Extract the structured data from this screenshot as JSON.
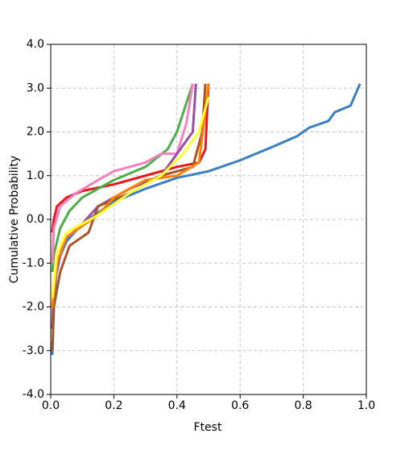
{
  "chart_data": {
    "type": "line",
    "xlabel": "Ftest",
    "ylabel": "Cumulative Probability",
    "xlim": [
      0,
      1
    ],
    "ylim": [
      -4,
      4
    ],
    "xticks": [
      {
        "value": 0,
        "label": "0.0"
      },
      {
        "value": 0.2,
        "label": "0.2"
      },
      {
        "value": 0.4,
        "label": "0.4"
      },
      {
        "value": 0.6,
        "label": "0.6"
      },
      {
        "value": 0.8,
        "label": "0.8"
      },
      {
        "value": 1,
        "label": "1.0"
      }
    ],
    "yticks": [
      {
        "value": -4,
        "label": "-4.0"
      },
      {
        "value": -3,
        "label": "-3.0"
      },
      {
        "value": -2,
        "label": "-2.0"
      },
      {
        "value": -1,
        "label": "-1.0"
      },
      {
        "value": 0,
        "label": "0.0"
      },
      {
        "value": 1,
        "label": "1.0"
      },
      {
        "value": 2,
        "label": "2.0"
      },
      {
        "value": 3,
        "label": "3.0"
      },
      {
        "value": 4,
        "label": "4.0"
      }
    ],
    "grid": true,
    "series": [
      {
        "color": "#3a7fc1",
        "x": [
          0.005,
          0.01,
          0.02,
          0.05,
          0.1,
          0.2,
          0.3,
          0.4,
          0.5,
          0.6,
          0.7,
          0.78,
          0.82,
          0.88,
          0.9,
          0.95,
          0.98
        ],
        "values": [
          -3.1,
          -2,
          -1,
          -0.5,
          -0.1,
          0.4,
          0.7,
          0.95,
          1.1,
          1.35,
          1.65,
          1.9,
          2.1,
          2.25,
          2.45,
          2.6,
          3.1
        ]
      },
      {
        "color": "#e41a1c",
        "x": [
          0.005,
          0.01,
          0.02,
          0.05,
          0.1,
          0.2,
          0.3,
          0.4,
          0.47,
          0.49,
          0.5
        ],
        "values": [
          -0.3,
          0,
          0.3,
          0.5,
          0.65,
          0.8,
          1.0,
          1.2,
          1.3,
          1.6,
          3.1
        ]
      },
      {
        "color": "#4daf4a",
        "x": [
          0.005,
          0.01,
          0.03,
          0.06,
          0.1,
          0.2,
          0.3,
          0.37,
          0.4,
          0.45
        ],
        "values": [
          -1.2,
          -0.8,
          -0.2,
          0.2,
          0.5,
          0.9,
          1.2,
          1.6,
          2.0,
          3.1
        ]
      },
      {
        "color": "#f781bf",
        "x": [
          0.005,
          0.01,
          0.03,
          0.08,
          0.15,
          0.2,
          0.3,
          0.35,
          0.4,
          0.43,
          0.45
        ],
        "values": [
          -1.0,
          -0.2,
          0.3,
          0.6,
          0.9,
          1.1,
          1.3,
          1.5,
          1.5,
          2.2,
          3.1
        ]
      },
      {
        "color": "#984ea3",
        "x": [
          0.005,
          0.01,
          0.04,
          0.1,
          0.15,
          0.25,
          0.35,
          0.4,
          0.45,
          0.46
        ],
        "values": [
          -2.5,
          -1.5,
          -0.5,
          -0.1,
          0.3,
          0.7,
          1.0,
          1.5,
          2.0,
          3.1
        ]
      },
      {
        "color": "#a65628",
        "x": [
          0.005,
          0.01,
          0.03,
          0.06,
          0.12,
          0.15,
          0.25,
          0.35,
          0.45,
          0.48,
          0.49
        ],
        "values": [
          -3.0,
          -2.0,
          -1.2,
          -0.6,
          -0.3,
          0.3,
          0.6,
          1.0,
          1.2,
          2.0,
          3.1
        ]
      },
      {
        "color": "#ff7f00",
        "x": [
          0.005,
          0.02,
          0.05,
          0.15,
          0.2,
          0.3,
          0.4,
          0.47,
          0.5
        ],
        "values": [
          -2.0,
          -1.0,
          -0.4,
          0.1,
          0.5,
          0.9,
          1.0,
          1.3,
          3.1
        ]
      },
      {
        "color": "#ffff33",
        "x": [
          0.005,
          0.02,
          0.05,
          0.15,
          0.25,
          0.35,
          0.42,
          0.47,
          0.5
        ],
        "values": [
          -1.8,
          -0.8,
          -0.3,
          0.1,
          0.6,
          1.0,
          1.5,
          2.0,
          2.8
        ]
      }
    ]
  }
}
